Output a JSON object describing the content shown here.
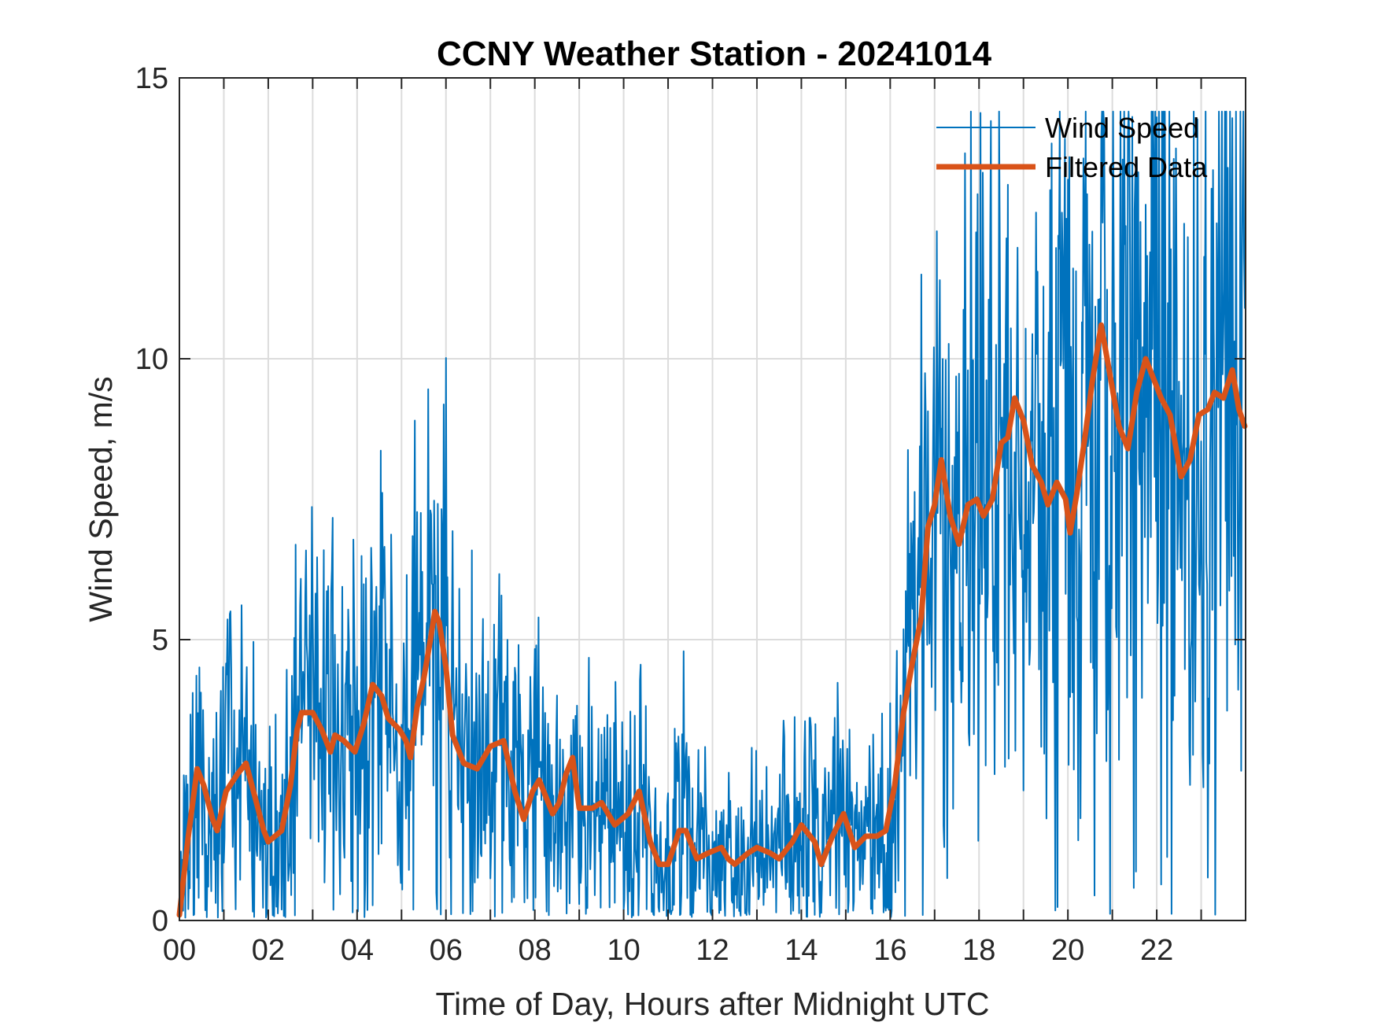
{
  "chart_data": {
    "type": "line",
    "title": "CCNY Weather Station - 20241014",
    "xlabel": "Time of Day, Hours after Midnight UTC",
    "ylabel": "Wind Speed, m/s",
    "xlim": [
      0,
      24
    ],
    "ylim": [
      0,
      15
    ],
    "x_major_ticks": [
      0,
      2,
      4,
      6,
      8,
      10,
      12,
      14,
      16,
      18,
      20,
      22
    ],
    "x_minor_ticks": [
      0,
      1,
      2,
      3,
      4,
      5,
      6,
      7,
      8,
      9,
      10,
      11,
      12,
      13,
      14,
      15,
      16,
      17,
      18,
      19,
      20,
      21,
      22,
      23
    ],
    "x_tick_labels": [
      "00",
      "02",
      "04",
      "06",
      "08",
      "10",
      "12",
      "14",
      "16",
      "18",
      "20",
      "22"
    ],
    "y_ticks": [
      0,
      5,
      10,
      15
    ],
    "y_tick_labels": [
      "0",
      "5",
      "10",
      "15"
    ],
    "grid": true,
    "legend_position": "top-right",
    "legend": [
      "Wind Speed",
      "Filtered Data"
    ],
    "colors": {
      "wind_speed": "#0072BD",
      "filtered": "#D95319",
      "axes": "#262626",
      "grid": "#dcdcdc"
    },
    "series": [
      {
        "name": "Wind Speed",
        "note": "raw ~1-minute samples; noisy series around filtered curve; notable peaks listed",
        "peaks": [
          {
            "x": 5.3,
            "y": 8.9
          },
          {
            "x": 5.65,
            "y": 7.3
          },
          {
            "x": 16.7,
            "y": 11.5
          },
          {
            "x": 18.65,
            "y": 13.1
          },
          {
            "x": 20.75,
            "y": 13.9
          },
          {
            "x": 22.0,
            "y": 14.3
          },
          {
            "x": 23.6,
            "y": 13.4
          }
        ],
        "troughs": [
          {
            "x": 0.0,
            "y": 0.1
          },
          {
            "x": 5.8,
            "y": 0.2
          },
          {
            "x": 11.5,
            "y": 0.1
          },
          {
            "x": 14.3,
            "y": 0.1
          },
          {
            "x": 22.4,
            "y": 4.0
          }
        ]
      },
      {
        "name": "Filtered Data",
        "x": [
          0.0,
          0.2,
          0.4,
          0.55,
          0.75,
          0.85,
          1.05,
          1.3,
          1.5,
          1.7,
          1.9,
          2.0,
          2.3,
          2.5,
          2.65,
          2.75,
          3.0,
          3.2,
          3.4,
          3.5,
          3.7,
          3.95,
          4.15,
          4.35,
          4.55,
          4.7,
          4.95,
          5.1,
          5.2,
          5.35,
          5.5,
          5.65,
          5.75,
          5.85,
          6.0,
          6.15,
          6.4,
          6.7,
          7.0,
          7.3,
          7.55,
          7.75,
          7.95,
          8.1,
          8.4,
          8.55,
          8.7,
          8.85,
          9.0,
          9.3,
          9.5,
          9.8,
          10.1,
          10.35,
          10.6,
          10.8,
          11.0,
          11.25,
          11.4,
          11.65,
          11.9,
          12.2,
          12.35,
          12.5,
          12.8,
          13.0,
          13.3,
          13.5,
          13.8,
          14.0,
          14.3,
          14.45,
          14.7,
          14.95,
          15.2,
          15.45,
          15.7,
          15.9,
          16.1,
          16.3,
          16.5,
          16.7,
          16.85,
          17.0,
          17.15,
          17.35,
          17.55,
          17.75,
          17.95,
          18.1,
          18.3,
          18.5,
          18.65,
          18.8,
          19.0,
          19.2,
          19.4,
          19.55,
          19.75,
          19.95,
          20.05,
          20.2,
          20.4,
          20.55,
          20.75,
          20.95,
          21.15,
          21.35,
          21.55,
          21.75,
          21.95,
          22.1,
          22.3,
          22.55,
          22.75,
          22.95,
          23.15,
          23.3,
          23.5,
          23.7,
          23.85,
          23.98
        ],
        "values": [
          0.1,
          1.5,
          2.7,
          2.4,
          1.8,
          1.6,
          2.3,
          2.6,
          2.8,
          2.2,
          1.6,
          1.4,
          1.6,
          2.4,
          3.4,
          3.7,
          3.7,
          3.4,
          3.0,
          3.3,
          3.2,
          3.0,
          3.5,
          4.2,
          4.0,
          3.6,
          3.4,
          3.2,
          2.9,
          3.8,
          4.3,
          5.0,
          5.5,
          5.3,
          4.5,
          3.3,
          2.8,
          2.7,
          3.1,
          3.2,
          2.3,
          1.8,
          2.3,
          2.5,
          1.9,
          2.1,
          2.6,
          2.9,
          2.0,
          2.0,
          2.1,
          1.7,
          1.9,
          2.3,
          1.4,
          1.0,
          1.0,
          1.6,
          1.6,
          1.1,
          1.2,
          1.3,
          1.1,
          1.0,
          1.2,
          1.3,
          1.2,
          1.1,
          1.4,
          1.7,
          1.4,
          1.0,
          1.5,
          1.9,
          1.3,
          1.5,
          1.5,
          1.6,
          2.4,
          3.7,
          4.6,
          5.4,
          7.0,
          7.4,
          8.2,
          7.2,
          6.7,
          7.4,
          7.5,
          7.2,
          7.5,
          8.5,
          8.6,
          9.3,
          8.9,
          8.1,
          7.8,
          7.4,
          7.8,
          7.5,
          6.9,
          7.6,
          8.7,
          9.6,
          10.6,
          9.7,
          8.8,
          8.4,
          9.4,
          10.0,
          9.6,
          9.3,
          9.0,
          7.9,
          8.2,
          9.0,
          9.1,
          9.4,
          9.3,
          9.8,
          9.1,
          8.8
        ]
      }
    ]
  }
}
